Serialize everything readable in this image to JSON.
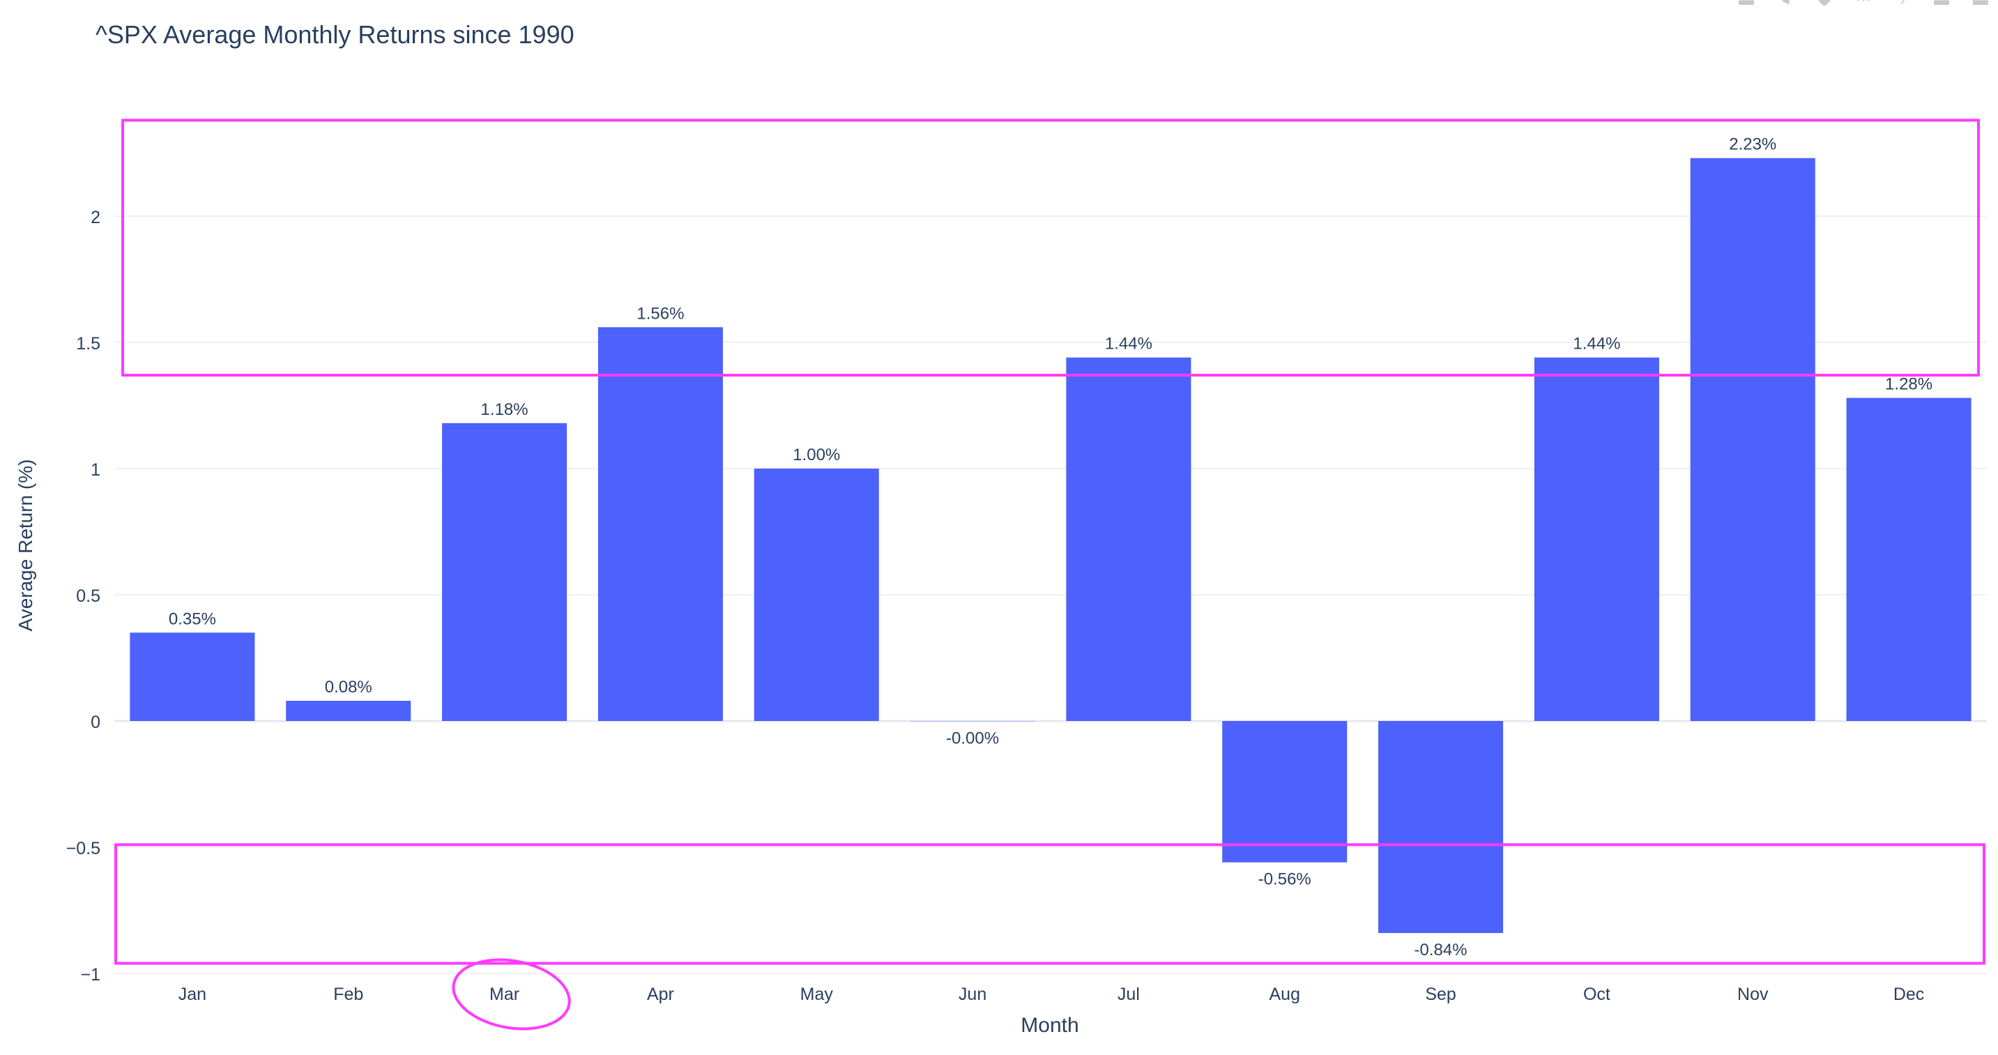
{
  "chart_data": {
    "type": "bar",
    "title": "^SPX Average Monthly Returns since 1990",
    "xlabel": "Month",
    "ylabel": "Average Return (%)",
    "categories": [
      "Jan",
      "Feb",
      "Mar",
      "Apr",
      "May",
      "Jun",
      "Jul",
      "Aug",
      "Sep",
      "Oct",
      "Nov",
      "Dec"
    ],
    "values": [
      0.35,
      0.08,
      1.18,
      1.56,
      1.0,
      -0.001,
      1.44,
      -0.56,
      -0.84,
      1.44,
      2.23,
      1.28
    ],
    "data_labels": [
      "0.35%",
      "0.08%",
      "1.18%",
      "1.56%",
      "1.00%",
      "-0.00%",
      "1.44%",
      "-0.56%",
      "-0.84%",
      "1.44%",
      "2.23%",
      "1.28%"
    ],
    "ylim": [
      -1,
      2.45
    ],
    "yticks": [
      -1,
      -0.5,
      0,
      0.5,
      1,
      1.5,
      2
    ],
    "ytick_labels": [
      "−1",
      "−0.5",
      "0",
      "0.5",
      "1",
      "1.5",
      "2"
    ],
    "grid": true,
    "bar_color": "#4d61fc",
    "annotations": {
      "color": "#ff3bff",
      "rectangles": [
        {
          "y_range": [
            1.37,
            2.38
          ]
        },
        {
          "y_range": [
            -0.96,
            -0.49
          ]
        }
      ],
      "circled_category": "Mar"
    }
  },
  "modebar": {
    "icons": [
      "camera-icon",
      "zoom-icon",
      "pan-icon",
      "select-icon",
      "lasso-icon",
      "zoom-in-icon",
      "zoom-out-icon"
    ]
  }
}
